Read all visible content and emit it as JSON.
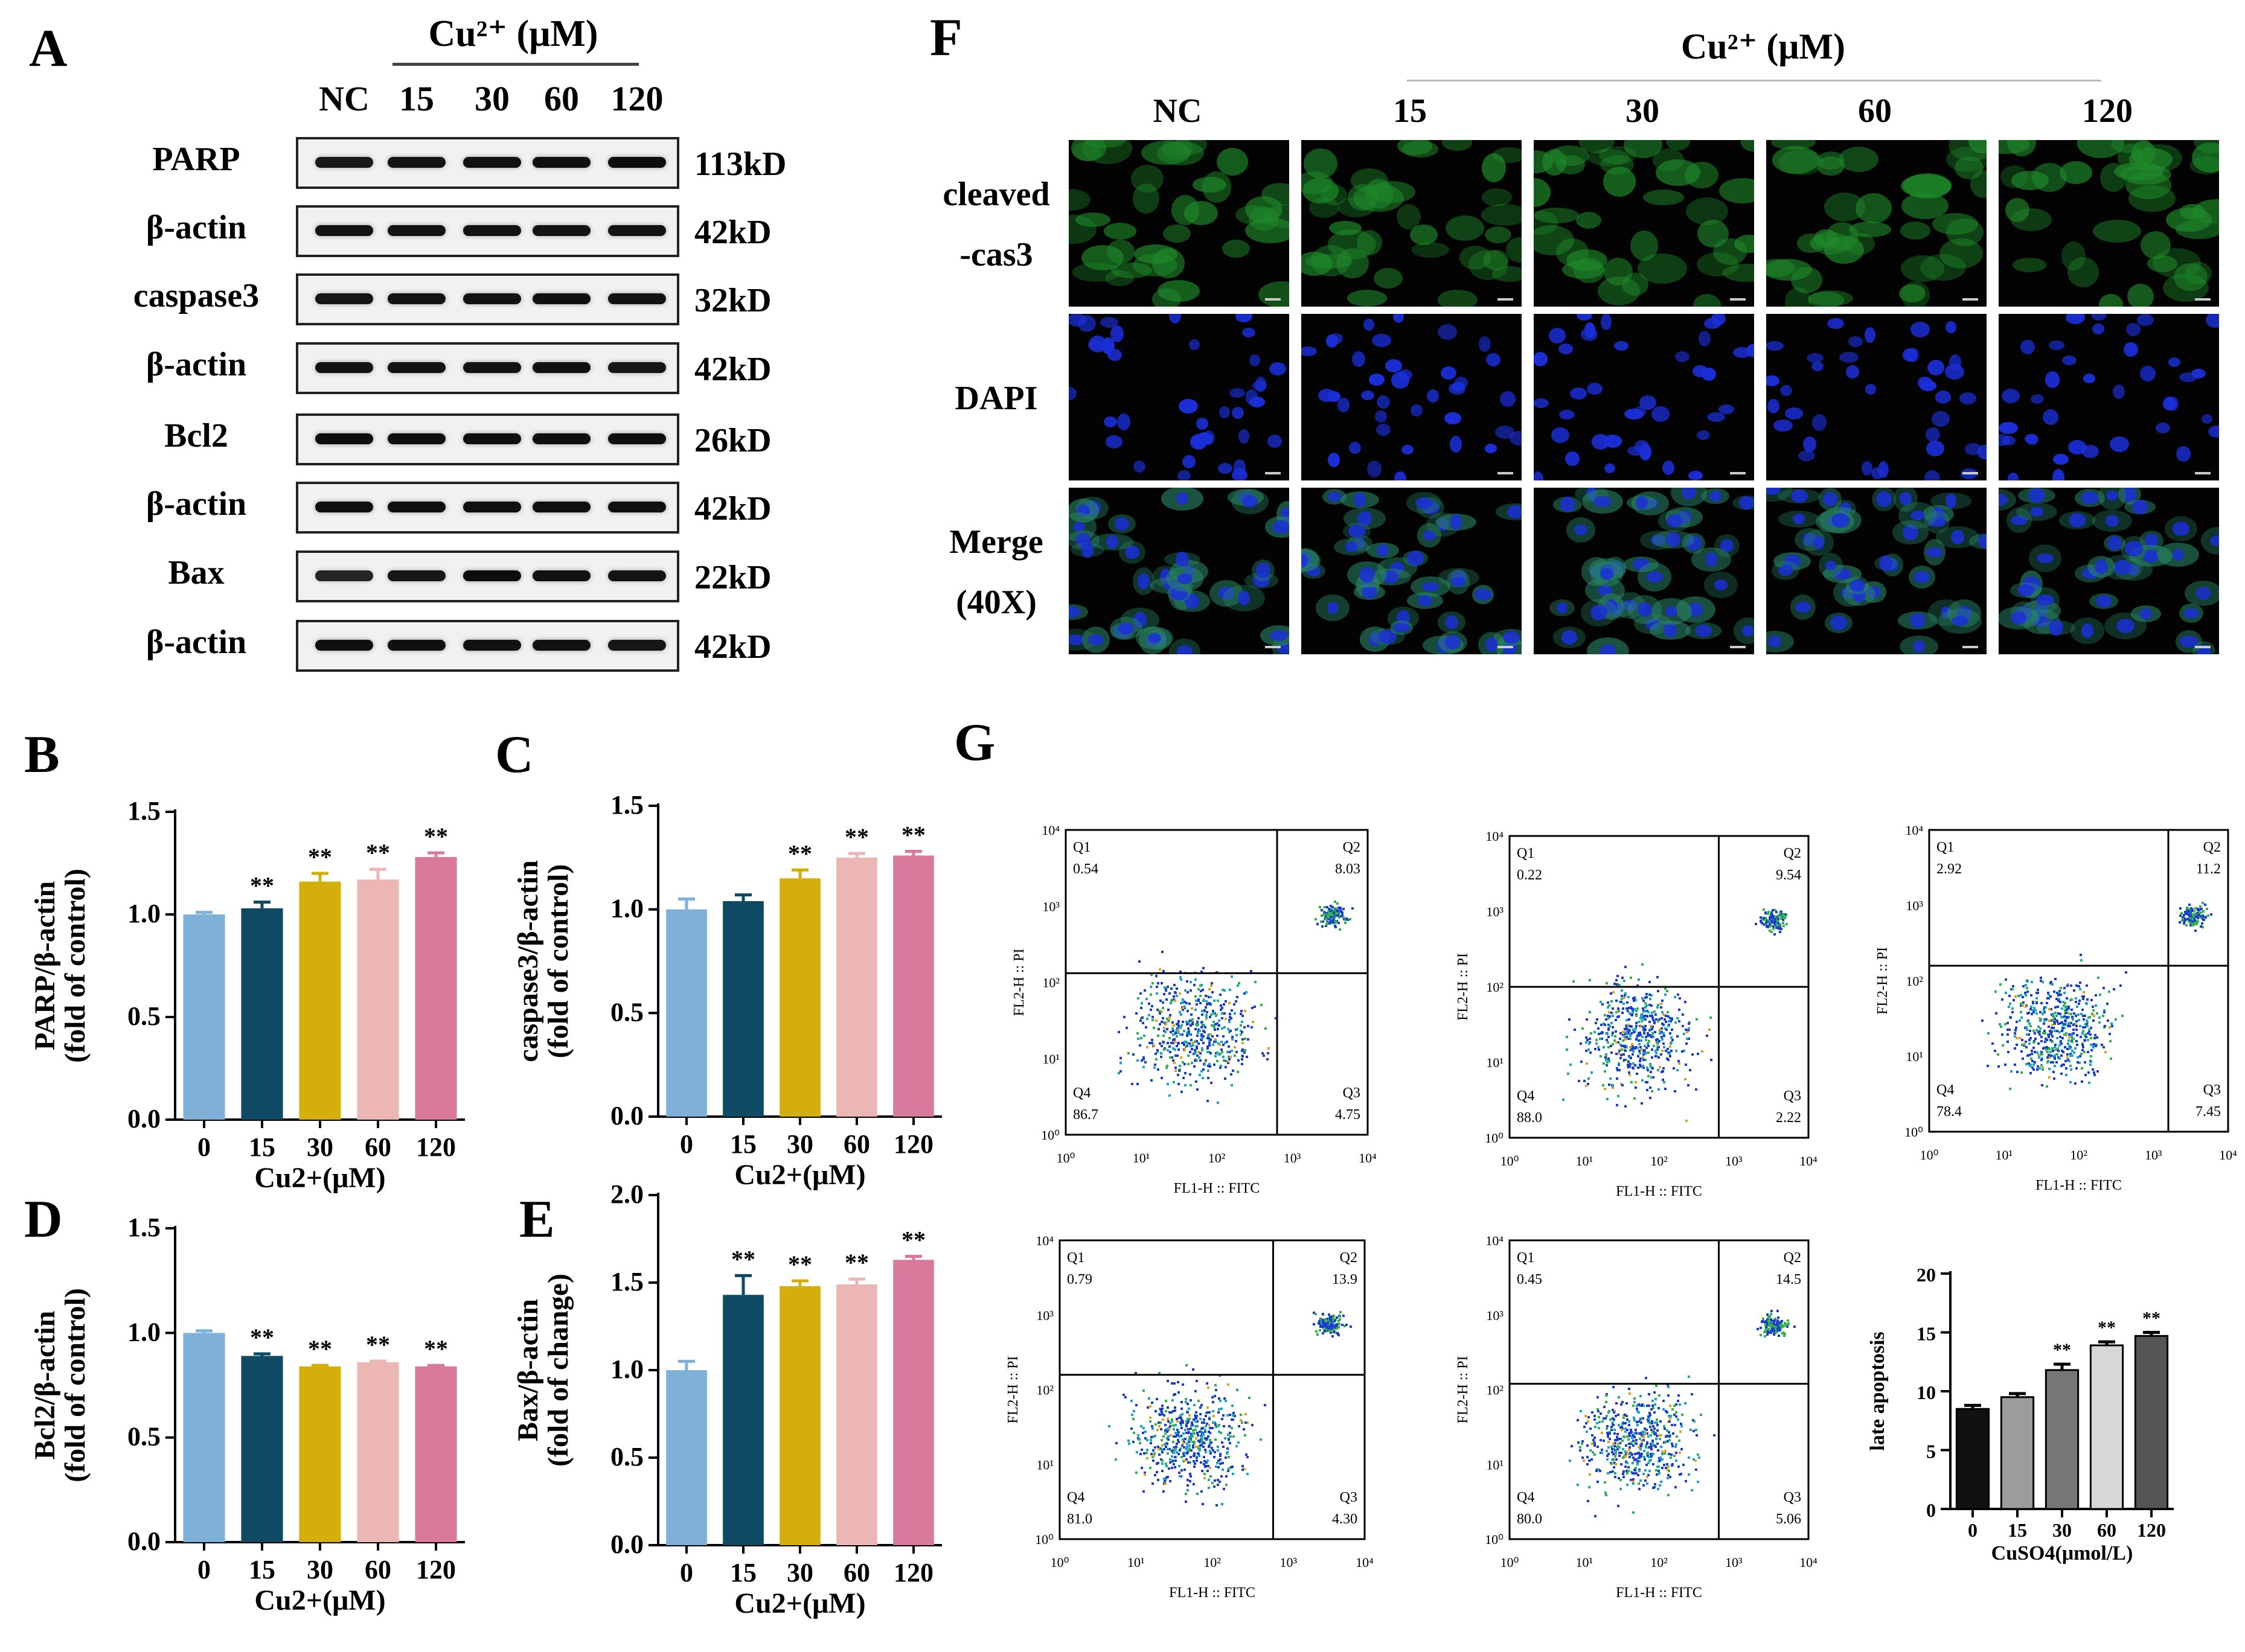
{
  "panels": {
    "A": "A",
    "B": "B",
    "C": "C",
    "D": "D",
    "E": "E",
    "F": "F",
    "G": "G"
  },
  "western_blot": {
    "treatment_header": "Cu²⁺ (μM)",
    "lanes": [
      "NC",
      "15",
      "30",
      "60",
      "120"
    ],
    "rows": [
      {
        "label": "PARP",
        "kd": "113kD",
        "intensity": [
          0.75,
          0.85,
          0.88,
          0.92,
          0.95
        ]
      },
      {
        "label": "β-actin",
        "kd": "42kD",
        "intensity": [
          0.85,
          0.85,
          0.85,
          0.85,
          0.85
        ]
      },
      {
        "label": "caspase3",
        "kd": "32kD",
        "intensity": [
          0.8,
          0.85,
          0.88,
          0.9,
          0.86
        ]
      },
      {
        "label": "β-actin",
        "kd": "42kD",
        "intensity": [
          0.85,
          0.85,
          0.85,
          0.88,
          0.8
        ]
      },
      {
        "label": "Bcl2",
        "kd": "26kD",
        "intensity": [
          0.95,
          0.92,
          0.9,
          0.92,
          0.9
        ]
      },
      {
        "label": "β-actin",
        "kd": "42kD",
        "intensity": [
          0.92,
          0.92,
          0.92,
          0.92,
          0.92
        ]
      },
      {
        "label": "Bax",
        "kd": "22kD",
        "intensity": [
          0.55,
          0.8,
          0.95,
          0.88,
          0.85
        ]
      },
      {
        "label": "β-actin",
        "kd": "42kD",
        "intensity": [
          0.9,
          0.9,
          0.88,
          0.86,
          0.8
        ]
      }
    ]
  },
  "immunofluorescence": {
    "treatment_header": "Cu²⁺ (μM)",
    "columns": [
      "NC",
      "15",
      "30",
      "60",
      "120"
    ],
    "rows": [
      {
        "label_lines": [
          "cleaved",
          "-cas3"
        ],
        "channel": "green"
      },
      {
        "label_lines": [
          "DAPI"
        ],
        "channel": "blue"
      },
      {
        "label_lines": [
          "Merge",
          "(40X)"
        ],
        "channel": "merge"
      }
    ]
  },
  "colors": {
    "bar_0": "#7eb0d8",
    "bar_15": "#0e4a63",
    "bar_30": "#d4ae0a",
    "bar_60": "#ecb6b4",
    "bar_120": "#d97a9c",
    "if_green": "#1f8a2a",
    "if_blue": "#1b2fd8"
  },
  "chart_data": [
    {
      "id": "B",
      "type": "bar",
      "categories": [
        "0",
        "15",
        "30",
        "60",
        "120"
      ],
      "values": [
        1.0,
        1.03,
        1.16,
        1.17,
        1.28
      ],
      "errors": [
        0.01,
        0.03,
        0.04,
        0.05,
        0.02
      ],
      "significance": [
        "",
        "**",
        "**",
        "**",
        "**"
      ],
      "ylabel_lines": [
        "PARP/β-actin",
        "(fold of control)"
      ],
      "xlabel": "Cu2+(μM)",
      "ylim": [
        0,
        1.5
      ],
      "yticks": [
        "0.0",
        "0.5",
        "1.0",
        "1.5"
      ]
    },
    {
      "id": "C",
      "type": "bar",
      "categories": [
        "0",
        "15",
        "30",
        "60",
        "120"
      ],
      "values": [
        1.0,
        1.04,
        1.15,
        1.25,
        1.26
      ],
      "errors": [
        0.05,
        0.03,
        0.04,
        0.02,
        0.02
      ],
      "significance": [
        "",
        "",
        "**",
        "**",
        "**"
      ],
      "ylabel_lines": [
        "caspase3/β-actin",
        "(fold of control)"
      ],
      "xlabel": "Cu2+(μM)",
      "ylim": [
        0,
        1.5
      ],
      "yticks": [
        "0.0",
        "0.5",
        "1.0",
        "1.5"
      ]
    },
    {
      "id": "D",
      "type": "bar",
      "categories": [
        "0",
        "15",
        "30",
        "60",
        "120"
      ],
      "values": [
        1.0,
        0.89,
        0.84,
        0.86,
        0.84
      ],
      "errors": [
        0.01,
        0.01,
        0.005,
        0.005,
        0.005
      ],
      "significance": [
        "",
        "**",
        "**",
        "**",
        "**"
      ],
      "ylabel_lines": [
        "Bcl2/β-actin",
        "(fold of control)"
      ],
      "xlabel": "Cu2+(μM)",
      "ylim": [
        0,
        1.5
      ],
      "yticks": [
        "0.0",
        "0.5",
        "1.0",
        "1.5"
      ]
    },
    {
      "id": "E",
      "type": "bar",
      "categories": [
        "0",
        "15",
        "30",
        "60",
        "120"
      ],
      "values": [
        1.0,
        1.43,
        1.48,
        1.49,
        1.63
      ],
      "errors": [
        0.05,
        0.11,
        0.03,
        0.03,
        0.02
      ],
      "significance": [
        "",
        "**",
        "**",
        "**",
        "**"
      ],
      "ylabel_lines": [
        "Bax/β-actin",
        "(fold of change)"
      ],
      "xlabel": "Cu2+(μM)",
      "ylim": [
        0,
        2.0
      ],
      "yticks": [
        "0.0",
        "0.5",
        "1.0",
        "1.5",
        "2.0"
      ]
    },
    {
      "id": "G-bar",
      "type": "bar",
      "categories": [
        "0",
        "15",
        "30",
        "60",
        "120"
      ],
      "values": [
        8.5,
        9.5,
        11.8,
        13.9,
        14.7
      ],
      "errors": [
        0.3,
        0.3,
        0.5,
        0.3,
        0.3
      ],
      "significance": [
        "",
        "",
        "**",
        "**",
        "**"
      ],
      "ylabel": "late apoptosis",
      "xlabel": "CuSO4(μmol/L)",
      "ylim": [
        0,
        20
      ],
      "yticks": [
        "0",
        "5",
        "10",
        "15",
        "20"
      ],
      "bar_colors": [
        "#111111",
        "#9c9c9c",
        "#777777",
        "#d8d8d8",
        "#555555"
      ]
    },
    {
      "id": "G-flow",
      "type": "scatter",
      "xlabel": "FL1-H :: FITC",
      "ylabel": "FL2-H :: PI",
      "log_ticks": [
        "10⁰",
        "10¹",
        "10²",
        "10³",
        "10⁴"
      ],
      "plots": [
        {
          "Q1": "0.54",
          "Q2": "8.03",
          "Q3": "4.75",
          "Q4": "86.7"
        },
        {
          "Q1": "0.22",
          "Q2": "9.54",
          "Q3": "2.22",
          "Q4": "88.0"
        },
        {
          "Q1": "2.92",
          "Q2": "11.2",
          "Q3": "7.45",
          "Q4": "78.4"
        },
        {
          "Q1": "0.79",
          "Q2": "13.9",
          "Q3": "4.30",
          "Q4": "81.0"
        },
        {
          "Q1": "0.45",
          "Q2": "14.5",
          "Q3": "5.06",
          "Q4": "80.0"
        }
      ]
    }
  ]
}
